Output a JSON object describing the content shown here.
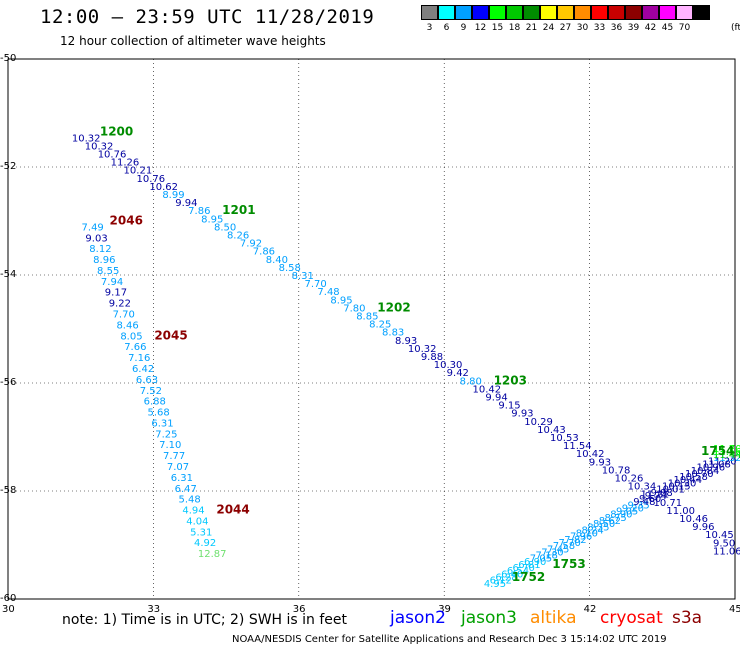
{
  "title": "12:00 – 23:59 UTC 11/28/2019",
  "subtitle": "12 hour collection of altimeter wave heights",
  "legend": {
    "unit": "(ft)",
    "swatches": [
      {
        "color": "#7f7f7f",
        "label": "3"
      },
      {
        "color": "#00ffff",
        "label": "6"
      },
      {
        "color": "#00a0ff",
        "label": "9"
      },
      {
        "color": "#0000ff",
        "label": "12"
      },
      {
        "color": "#00ff00",
        "label": "15"
      },
      {
        "color": "#00c800",
        "label": "18"
      },
      {
        "color": "#008c00",
        "label": "21"
      },
      {
        "color": "#ffff00",
        "label": "24"
      },
      {
        "color": "#ffc800",
        "label": "27"
      },
      {
        "color": "#ff8c00",
        "label": "30"
      },
      {
        "color": "#ff0000",
        "label": "33"
      },
      {
        "color": "#c80000",
        "label": "36"
      },
      {
        "color": "#8c0000",
        "label": "39"
      },
      {
        "color": "#a000a0",
        "label": "42"
      },
      {
        "color": "#ff00ff",
        "label": "45"
      },
      {
        "color": "#ffb4ff",
        "label": "70"
      },
      {
        "color": "#000000",
        "label": ""
      }
    ]
  },
  "map": {
    "lon_range": [
      30,
      45
    ],
    "lat_range": [
      -60,
      -50
    ],
    "lat_labels": [
      "-50",
      "-52",
      "-54",
      "-56",
      "-58",
      "-60"
    ],
    "lon_labels": [
      "30",
      "33",
      "36",
      "39",
      "42",
      "45"
    ]
  },
  "tracks": {
    "t1": {
      "time_label": "1200",
      "time_color": "#008c00",
      "mid_labels": [
        {
          "text": "1201",
          "at": 9
        },
        {
          "text": "1202",
          "at": 21
        },
        {
          "text": "1203",
          "at": 30
        }
      ],
      "start": [
        31.4,
        -51.45
      ],
      "end": [
        45.0,
        -59.1
      ],
      "values": [
        "10.32",
        "10.32",
        "10.76",
        "11.26",
        "10.21",
        "10.76",
        "10.62",
        "8.99",
        "9.94",
        "7.86",
        "8.95",
        "8.50",
        "8.26",
        "7.92",
        "7.86",
        "8.40",
        "8.58",
        "8.31",
        "7.70",
        "7.48",
        "8.95",
        "7.80",
        "8.85",
        "8.25",
        "8.83",
        "8.93",
        "10.32",
        "9.88",
        "10.30",
        "9.42",
        "8.80",
        "10.42",
        "9.94",
        "9.15",
        "9.93",
        "10.29",
        "10.43",
        "10.53",
        "11.54",
        "10.42",
        "9.93",
        "10.78",
        "10.26",
        "10.34",
        "11.21",
        "10.71",
        "11.00",
        "10.46",
        "9.96",
        "10.45",
        "9.50",
        "11.06"
      ],
      "colors": [
        "#0000a0",
        "#0000a0",
        "#0000a0",
        "#0000a0",
        "#0000a0",
        "#0000a0",
        "#0000a0",
        "#00a0ff",
        "#0000a0",
        "#00a0ff",
        "#00a0ff",
        "#00a0ff",
        "#00a0ff",
        "#00a0ff",
        "#00a0ff",
        "#00a0ff",
        "#00a0ff",
        "#00a0ff",
        "#00a0ff",
        "#00a0ff",
        "#00a0ff",
        "#00a0ff",
        "#00a0ff",
        "#00a0ff",
        "#00a0ff",
        "#0000a0",
        "#0000a0",
        "#0000a0",
        "#0000a0",
        "#0000a0",
        "#00a0ff",
        "#0000a0",
        "#0000a0",
        "#0000a0",
        "#0000a0",
        "#0000a0",
        "#0000a0",
        "#0000a0",
        "#0000a0",
        "#0000a0",
        "#0000a0",
        "#0000a0",
        "#0000a0",
        "#0000a0",
        "#0000a0",
        "#0000a0",
        "#0000a0",
        "#0000a0",
        "#0000a0",
        "#0000a0",
        "#0000a0",
        "#0000a0"
      ]
    },
    "t2": {
      "time_label": "2046",
      "time_color": "#8c0000",
      "mid_labels": [
        {
          "text": "2045",
          "at": 10
        },
        {
          "text": "2044",
          "at": 26
        }
      ],
      "start": [
        31.6,
        -53.1
      ],
      "end": [
        34.0,
        -59.15
      ],
      "values": [
        "7.49",
        "9.03",
        "8.12",
        "8.96",
        "8.55",
        "7.94",
        "9.17",
        "9.22",
        "7.70",
        "8.46",
        "8.05",
        "7.66",
        "7.16",
        "6.42",
        "6.63",
        "7.52",
        "6.88",
        "5.68",
        "6.31",
        "7.25",
        "7.10",
        "7.77",
        "7.07",
        "6.31",
        "6.47",
        "5.48",
        "4.94",
        "4.04",
        "5.31",
        "4.92",
        "12.87"
      ],
      "colors": [
        "#00a0ff",
        "#0000a0",
        "#00a0ff",
        "#00a0ff",
        "#00a0ff",
        "#00a0ff",
        "#0000a0",
        "#0000a0",
        "#00a0ff",
        "#00a0ff",
        "#00a0ff",
        "#00a0ff",
        "#00a0ff",
        "#00a0ff",
        "#00a0ff",
        "#00a0ff",
        "#00a0ff",
        "#00a0ff",
        "#00a0ff",
        "#00a0ff",
        "#00a0ff",
        "#00a0ff",
        "#00a0ff",
        "#00a0ff",
        "#00a0ff",
        "#00a0ff",
        "#00c8ff",
        "#00c8ff",
        "#00c8ff",
        "#00c8ff",
        "#70e070"
      ]
    },
    "t3": {
      "time_label": "1752",
      "time_color": "#008c00",
      "mid_labels": [
        {
          "text": "1753",
          "at": 6
        },
        {
          "text": "1754",
          "at": 42
        }
      ],
      "start": [
        39.9,
        -59.7
      ],
      "end": [
        45.0,
        -57.2
      ],
      "values": [
        "4.95",
        "6.12",
        "6.28",
        "6.40",
        "6.54",
        "6.70",
        "6.81",
        "6.90",
        "7.05",
        "7.18",
        "7.30",
        "7.45",
        "7.58",
        "7.70",
        "7.82",
        "7.96",
        "8.10",
        "8.24",
        "8.35",
        "8.50",
        "8.62",
        "8.75",
        "8.90",
        "9.05",
        "9.20",
        "9.35",
        "9.48",
        "9.60",
        "9.74",
        "9.88",
        "10.01",
        "10.15",
        "10.30",
        "10.44",
        "10.58",
        "10.70",
        "10.84",
        "10.96",
        "11.08",
        "11.20",
        "11.32",
        "11.44",
        "11.56",
        "11.70"
      ],
      "colors": [
        "#00c8ff",
        "#00c8ff",
        "#00c8ff",
        "#00c8ff",
        "#00c8ff",
        "#00c8ff",
        "#00c8ff",
        "#00c8ff",
        "#00a0ff",
        "#00a0ff",
        "#00a0ff",
        "#00a0ff",
        "#00a0ff",
        "#00a0ff",
        "#00a0ff",
        "#00a0ff",
        "#00a0ff",
        "#00a0ff",
        "#00a0ff",
        "#00a0ff",
        "#00a0ff",
        "#00a0ff",
        "#00a0ff",
        "#00a0ff",
        "#00a0ff",
        "#00a0ff",
        "#0000a0",
        "#0000a0",
        "#0000a0",
        "#0000a0",
        "#0000a0",
        "#0000a0",
        "#0000a0",
        "#0000a0",
        "#0000a0",
        "#0000a0",
        "#0000a0",
        "#0000a0",
        "#0000a0",
        "#0000a0",
        "#00a0ff",
        "#00c800",
        "#00ff00",
        "#00ff00"
      ]
    }
  },
  "footer": {
    "note": "note:  1) Time is in UTC;  2) SWH is in feet",
    "satellites": [
      {
        "name": "jason2",
        "color": "#0000ff"
      },
      {
        "name": "jason3",
        "color": "#00a000"
      },
      {
        "name": "altika",
        "color": "#ff8c00"
      },
      {
        "name": "cryosat",
        "color": "#ff0000"
      },
      {
        "name": "s3a",
        "color": "#8c0000"
      }
    ],
    "credit": "NOAA/NESDIS Center for Satellite Applications and Research     Dec  3 15:14:02 UTC 2019"
  }
}
